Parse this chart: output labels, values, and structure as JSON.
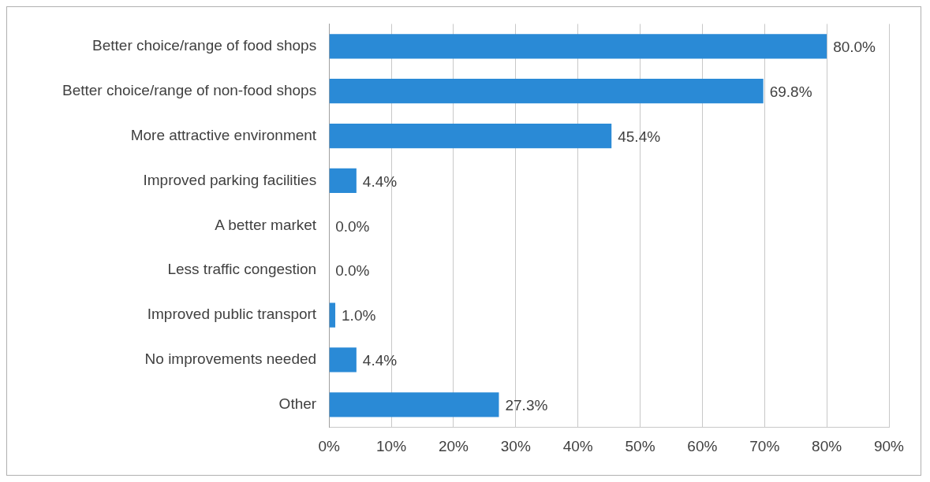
{
  "chart_data": {
    "type": "bar",
    "orientation": "horizontal",
    "categories": [
      "Better choice/range of food shops",
      "Better choice/range of non-food shops",
      "More attractive environment",
      "Improved parking facilities",
      "A better market",
      "Less traffic congestion",
      "Improved public transport",
      "No improvements needed",
      "Other"
    ],
    "values": [
      80.0,
      69.8,
      45.4,
      4.4,
      0.0,
      0.0,
      1.0,
      4.4,
      27.3
    ],
    "value_labels": [
      "80.0%",
      "69.8%",
      "45.4%",
      "4.4%",
      "0.0%",
      "0.0%",
      "1.0%",
      "4.4%",
      "27.3%"
    ],
    "color": "#2a8ad6",
    "xlim": [
      0,
      90
    ],
    "xticks": [
      {
        "value": 0,
        "label": "0%"
      },
      {
        "value": 10,
        "label": "10%"
      },
      {
        "value": 20,
        "label": "20%"
      },
      {
        "value": 30,
        "label": "30%"
      },
      {
        "value": 40,
        "label": "40%"
      },
      {
        "value": 50,
        "label": "50%"
      },
      {
        "value": 60,
        "label": "60%"
      },
      {
        "value": 70,
        "label": "70%"
      },
      {
        "value": 80,
        "label": "80%"
      },
      {
        "value": 90,
        "label": "90%"
      }
    ],
    "grid": "x",
    "legend": false
  }
}
